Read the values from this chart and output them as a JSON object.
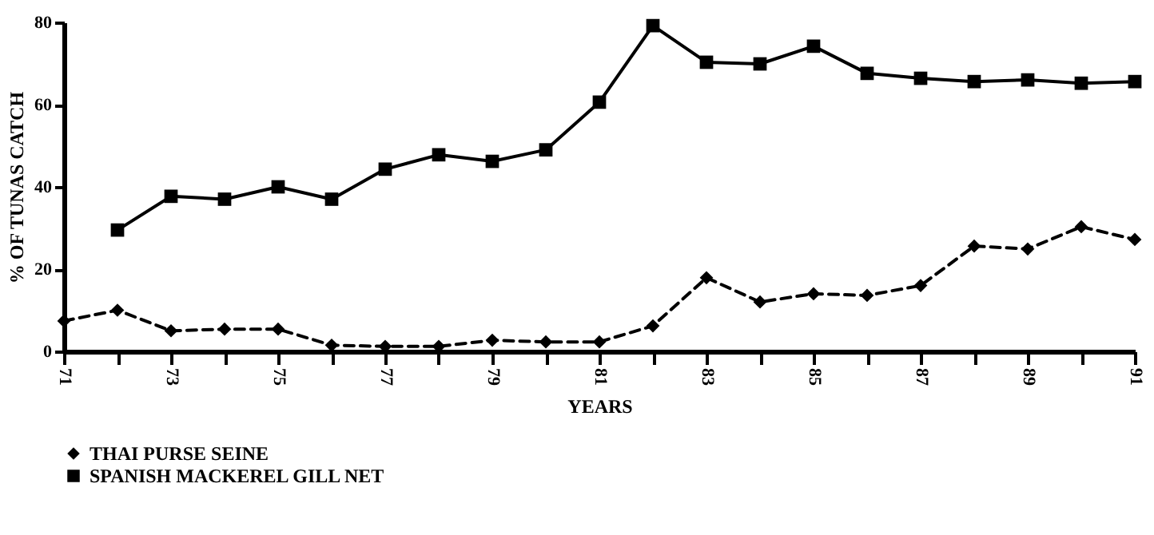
{
  "chart_data": {
    "type": "line",
    "xlabel": "YEARS",
    "ylabel": "% OF TUNAS CATCH",
    "x": [
      71,
      72,
      73,
      74,
      75,
      76,
      77,
      78,
      79,
      80,
      81,
      82,
      83,
      84,
      85,
      86,
      87,
      88,
      89,
      90,
      91
    ],
    "series": [
      {
        "name": "THAI PURSE SEINE",
        "color": "#000000",
        "marker": "diamond",
        "line_style": "dashed",
        "values": [
          7.4,
          10,
          5,
          5.4,
          5.4,
          1.5,
          1.2,
          1.2,
          2.7,
          2.3,
          2.3,
          6.2,
          17.9,
          12,
          14,
          13.6,
          16,
          25.6,
          24.9,
          30.3,
          27.2
        ]
      },
      {
        "name": "SPANISH MACKEREL GILL NET",
        "color": "#000000",
        "marker": "square",
        "line_style": "solid",
        "values": [
          null,
          29.5,
          37.7,
          37,
          40,
          37,
          44.3,
          47.8,
          46.2,
          49,
          60.6,
          79.2,
          70.3,
          69.9,
          74.2,
          67.6,
          66.4,
          65.6,
          66,
          65.2,
          65.6
        ]
      }
    ],
    "xlim": [
      71,
      91
    ],
    "xticks": [
      71,
      {
        "value": 72,
        "label": null
      },
      73,
      {
        "value": 74,
        "label": null
      },
      75,
      {
        "value": 76,
        "label": null
      },
      77,
      {
        "value": 78,
        "label": null
      },
      79,
      {
        "value": 80,
        "label": null
      },
      81,
      {
        "value": 82,
        "label": null
      },
      83,
      {
        "value": 84,
        "label": null
      },
      85,
      {
        "value": 86,
        "label": null
      },
      87,
      {
        "value": 88,
        "label": null
      },
      89,
      {
        "value": 90,
        "label": null
      },
      91
    ],
    "ylim": [
      0,
      80
    ],
    "yticks": [
      0,
      20,
      40,
      60,
      80
    ],
    "grid": false,
    "legend": "bottom"
  }
}
